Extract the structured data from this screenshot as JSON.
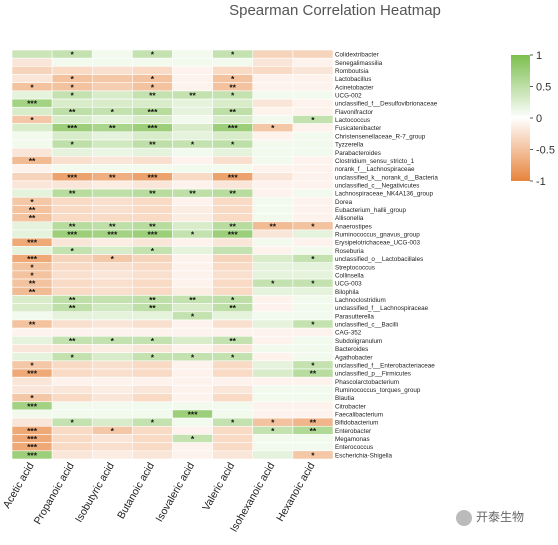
{
  "chart_data": {
    "type": "heatmap",
    "title": "Spearman Correlation Heatmap",
    "columns": [
      "Acetic acid",
      "Propanoic acid",
      "Isobutyric acid",
      "Butanoic acid",
      "Isovaleric acid",
      "Valeric acid",
      "Isohexanoic acid",
      "Hexanoic acid"
    ],
    "rows": [
      "Colidextribacter",
      "Senegalimassilia",
      "Romboutsia",
      "Lactobacillus",
      "Acinetobacter",
      "UCG-002",
      "unclassified_f__Desulfovibrionaceae",
      "Flavonifractor",
      "Lactococcus",
      "Fusicatenibacter",
      "Christensenellaceae_R-7_group",
      "Tyzzerella",
      "Parabacteroides",
      "Clostridium_sensu_stricto_1",
      "norank_f__Lachnospiraceae",
      "unclassified_k__norank_d__Bacteria",
      "unclassified_c__Negativicutes",
      "Lachnospiraceae_NK4A136_group",
      "Dorea",
      "Eubacterium_hallii_group",
      "Allisonella",
      "Anaerostipes",
      "Ruminococcus_gnavus_group",
      "Erysipelotrichaceae_UCG-003",
      "Roseburia",
      "unclassified_o__Lactobacillales",
      "Streptococcus",
      "Collinsella",
      "UCG-003",
      "Bilophila",
      "Lachnoclostridium",
      "unclassified_f__Lachnospiraceae",
      "Parasutterella",
      "unclassified_c__Bacilli",
      "CAG-352",
      "Subdoligranulum",
      "Bacteroides",
      "Agathobacter",
      "unclassified_f__Enterobacteriaceae",
      "unclassified_p__Firmicutes",
      "Phascolarctobacterium",
      "Ruminococcus_torques_group",
      "Blautia",
      "Citrobacter",
      "Faecalibacterium",
      "Bifidobacterium",
      "Enterobacter",
      "Megamonas",
      "Enterococcus",
      "Escherichia-Shigella"
    ],
    "values": [
      [
        0.4,
        0.45,
        0.1,
        0.45,
        0.1,
        0.45,
        -0.35,
        -0.35
      ],
      [
        -0.2,
        0.1,
        0.1,
        0.1,
        0.1,
        0.1,
        -0.2,
        -0.1
      ],
      [
        -0.35,
        -0.3,
        -0.25,
        -0.3,
        -0.1,
        -0.3,
        -0.3,
        -0.2
      ],
      [
        -0.2,
        -0.5,
        -0.45,
        -0.5,
        -0.1,
        -0.5,
        -0.1,
        -0.1
      ],
      [
        -0.5,
        -0.5,
        -0.4,
        -0.5,
        -0.1,
        -0.5,
        -0.1,
        -0.1
      ],
      [
        0.2,
        0.45,
        0.3,
        0.45,
        0.45,
        0.45,
        0.1,
        0.1
      ],
      [
        0.7,
        0.3,
        0.3,
        0.3,
        0.2,
        0.3,
        -0.2,
        -0.1
      ],
      [
        0.3,
        0.5,
        0.45,
        0.55,
        0.2,
        0.5,
        -0.1,
        -0.1
      ],
      [
        -0.45,
        0.3,
        0.2,
        0.3,
        0.1,
        0.3,
        0.1,
        0.45
      ],
      [
        0.3,
        0.75,
        0.65,
        0.75,
        0.3,
        0.75,
        -0.45,
        -0.1
      ],
      [
        0.1,
        0.3,
        0.2,
        0.3,
        0.2,
        0.3,
        -0.1,
        0.1
      ],
      [
        0.1,
        0.5,
        0.35,
        0.5,
        0.45,
        0.5,
        0.1,
        0.1
      ],
      [
        -0.2,
        0.2,
        0.15,
        0.2,
        0.1,
        0.2,
        0.1,
        0.1
      ],
      [
        -0.55,
        -0.25,
        -0.2,
        -0.25,
        -0.1,
        -0.25,
        0.1,
        -0.1
      ],
      [
        -0.1,
        0.1,
        0.1,
        0.1,
        0.1,
        0.1,
        -0.1,
        -0.1
      ],
      [
        -0.35,
        -0.75,
        -0.65,
        -0.75,
        -0.3,
        -0.75,
        -0.2,
        -0.1
      ],
      [
        -0.2,
        -0.2,
        -0.15,
        -0.2,
        -0.1,
        -0.2,
        -0.1,
        -0.1
      ],
      [
        0.2,
        0.55,
        0.5,
        0.55,
        0.5,
        0.55,
        -0.1,
        0.1
      ],
      [
        -0.45,
        -0.3,
        -0.25,
        -0.3,
        -0.1,
        -0.3,
        0.1,
        -0.1
      ],
      [
        -0.5,
        -0.3,
        -0.25,
        -0.3,
        -0.15,
        -0.3,
        0.1,
        -0.1
      ],
      [
        -0.5,
        -0.3,
        -0.3,
        -0.3,
        -0.15,
        -0.3,
        0.1,
        -0.1
      ],
      [
        0.2,
        0.55,
        0.5,
        0.55,
        0.3,
        0.55,
        -0.55,
        -0.5
      ],
      [
        0.2,
        0.75,
        0.7,
        0.75,
        0.45,
        0.75,
        -0.2,
        0.2
      ],
      [
        -0.7,
        -0.2,
        -0.15,
        -0.2,
        -0.1,
        -0.2,
        0.1,
        -0.1
      ],
      [
        0.2,
        0.45,
        0.3,
        0.45,
        0.2,
        0.45,
        -0.1,
        0.1
      ],
      [
        -0.7,
        -0.35,
        -0.45,
        -0.35,
        -0.1,
        -0.35,
        0.3,
        0.45
      ],
      [
        -0.5,
        -0.3,
        -0.25,
        -0.3,
        -0.1,
        -0.3,
        0.2,
        0.2
      ],
      [
        -0.5,
        -0.25,
        -0.2,
        -0.25,
        -0.1,
        -0.25,
        0.2,
        0.2
      ],
      [
        -0.5,
        -0.3,
        -0.25,
        -0.3,
        -0.1,
        -0.3,
        0.45,
        0.45
      ],
      [
        -0.55,
        -0.3,
        -0.25,
        -0.3,
        -0.15,
        -0.3,
        0.2,
        0.2
      ],
      [
        0.3,
        0.5,
        0.45,
        0.5,
        0.45,
        0.5,
        -0.1,
        0.1
      ],
      [
        0.3,
        0.5,
        0.35,
        0.5,
        0.3,
        0.5,
        -0.1,
        0.1
      ],
      [
        0.1,
        0.2,
        0.2,
        0.2,
        0.45,
        0.2,
        0.1,
        0.1
      ],
      [
        -0.5,
        -0.25,
        -0.2,
        -0.25,
        -0.1,
        -0.25,
        0.2,
        0.45
      ],
      [
        -0.1,
        -0.1,
        -0.1,
        -0.1,
        -0.1,
        -0.1,
        -0.1,
        -0.1
      ],
      [
        0.2,
        0.45,
        0.45,
        0.45,
        0.3,
        0.45,
        -0.1,
        0.1
      ],
      [
        -0.2,
        -0.2,
        -0.15,
        -0.2,
        -0.1,
        -0.2,
        0.1,
        0.1
      ],
      [
        0.2,
        0.45,
        0.3,
        0.45,
        0.45,
        0.45,
        -0.1,
        0.1
      ],
      [
        -0.45,
        -0.3,
        -0.25,
        -0.3,
        -0.1,
        -0.3,
        0.2,
        0.45
      ],
      [
        -0.7,
        -0.3,
        -0.25,
        -0.3,
        -0.1,
        -0.3,
        0.3,
        0.55
      ],
      [
        -0.2,
        -0.1,
        -0.1,
        -0.1,
        -0.1,
        -0.1,
        -0.1,
        -0.1
      ],
      [
        -0.2,
        -0.2,
        -0.15,
        -0.2,
        -0.1,
        -0.2,
        0.1,
        0.1
      ],
      [
        -0.45,
        -0.3,
        -0.2,
        -0.3,
        -0.1,
        -0.3,
        0.1,
        0.1
      ],
      [
        0.7,
        0.1,
        0.1,
        0.1,
        0.1,
        0.1,
        -0.1,
        -0.1
      ],
      [
        0.1,
        0.1,
        0.1,
        0.1,
        0.75,
        0.1,
        -0.1,
        -0.1
      ],
      [
        -0.2,
        0.45,
        0.3,
        0.45,
        0.1,
        0.45,
        -0.5,
        -0.6
      ],
      [
        -0.7,
        -0.3,
        -0.45,
        -0.3,
        -0.1,
        -0.3,
        0.45,
        0.6
      ],
      [
        -0.7,
        -0.3,
        -0.2,
        -0.3,
        0.45,
        -0.3,
        0.1,
        0.1
      ],
      [
        -0.7,
        -0.3,
        -0.25,
        -0.3,
        -0.1,
        -0.3,
        0.1,
        0.1
      ],
      [
        0.75,
        -0.2,
        -0.15,
        -0.2,
        -0.1,
        -0.2,
        0.2,
        -0.45
      ]
    ],
    "stars": [
      [
        "",
        "*",
        "",
        "*",
        "",
        "*",
        "",
        ""
      ],
      [
        "",
        "",
        "",
        "",
        "",
        "",
        "",
        ""
      ],
      [
        "",
        "",
        "",
        "",
        "",
        "",
        "",
        ""
      ],
      [
        "",
        "*",
        "",
        "*",
        "",
        "*",
        "",
        ""
      ],
      [
        "*",
        "*",
        "",
        "*",
        "",
        "**",
        "",
        ""
      ],
      [
        "",
        "*",
        "",
        "**",
        "**",
        "*",
        "",
        ""
      ],
      [
        "***",
        "",
        "",
        "",
        "",
        "",
        "",
        ""
      ],
      [
        "",
        "**",
        "*",
        "***",
        "",
        "**",
        "",
        ""
      ],
      [
        "*",
        "",
        "",
        "",
        "",
        "",
        "",
        "*"
      ],
      [
        "",
        "***",
        "**",
        "***",
        "",
        "***",
        "*",
        ""
      ],
      [
        "",
        "",
        "",
        "",
        "",
        "",
        "",
        ""
      ],
      [
        "",
        "*",
        "",
        "**",
        "*",
        "*",
        "",
        ""
      ],
      [
        "",
        "",
        "",
        "",
        "",
        "",
        "",
        ""
      ],
      [
        "**",
        "",
        "",
        "",
        "",
        "",
        "",
        ""
      ],
      [
        "",
        "",
        "",
        "",
        "",
        "",
        "",
        ""
      ],
      [
        "",
        "***",
        "**",
        "***",
        "",
        "***",
        "",
        ""
      ],
      [
        "",
        "",
        "",
        "",
        "",
        "",
        "",
        ""
      ],
      [
        "",
        "**",
        "",
        "**",
        "**",
        "**",
        "",
        ""
      ],
      [
        "*",
        "",
        "",
        "",
        "",
        "",
        "",
        ""
      ],
      [
        "**",
        "",
        "",
        "",
        "",
        "",
        "",
        ""
      ],
      [
        "**",
        "",
        "",
        "",
        "",
        "",
        "",
        ""
      ],
      [
        "",
        "**",
        "**",
        "**",
        "",
        "**",
        "**",
        "*"
      ],
      [
        "",
        "***",
        "***",
        "***",
        "*",
        "***",
        "",
        ""
      ],
      [
        "***",
        "",
        "",
        "",
        "",
        "",
        "",
        ""
      ],
      [
        "",
        "*",
        "",
        "*",
        "",
        "",
        "",
        ""
      ],
      [
        "***",
        "",
        "*",
        "",
        "",
        "",
        "",
        "*"
      ],
      [
        "*",
        "",
        "",
        "",
        "",
        "",
        "",
        ""
      ],
      [
        "*",
        "",
        "",
        "",
        "",
        "",
        "",
        ""
      ],
      [
        "**",
        "",
        "",
        "",
        "",
        "",
        "*",
        "*"
      ],
      [
        "**",
        "",
        "",
        "",
        "",
        "",
        "",
        ""
      ],
      [
        "",
        "**",
        "",
        "**",
        "**",
        "*",
        "",
        ""
      ],
      [
        "",
        "**",
        "",
        "**",
        "",
        "**",
        "",
        ""
      ],
      [
        "",
        "",
        "",
        "",
        "*",
        "",
        "",
        ""
      ],
      [
        "**",
        "",
        "",
        "",
        "",
        "",
        "",
        "*"
      ],
      [
        "",
        "",
        "",
        "",
        "",
        "",
        "",
        ""
      ],
      [
        "",
        "**",
        "*",
        "*",
        "",
        "**",
        "",
        ""
      ],
      [
        "",
        "",
        "",
        "",
        "",
        "",
        "",
        ""
      ],
      [
        "",
        "*",
        "",
        "*",
        "*",
        "*",
        "",
        ""
      ],
      [
        "*",
        "",
        "",
        "",
        "",
        "",
        "",
        "*"
      ],
      [
        "***",
        "",
        "",
        "",
        "",
        "",
        "",
        "**"
      ],
      [
        "",
        "",
        "",
        "",
        "",
        "",
        "",
        ""
      ],
      [
        "",
        "",
        "",
        "",
        "",
        "",
        "",
        ""
      ],
      [
        "*",
        "",
        "",
        "",
        "",
        "",
        "",
        ""
      ],
      [
        "***",
        "",
        "",
        "",
        "",
        "",
        "",
        ""
      ],
      [
        "",
        "",
        "",
        "",
        "***",
        "",
        "",
        ""
      ],
      [
        "",
        "*",
        "",
        "*",
        "",
        "*",
        "*",
        "**"
      ],
      [
        "***",
        "",
        "*",
        "",
        "",
        "",
        "*",
        "**"
      ],
      [
        "***",
        "",
        "",
        "",
        "*",
        "",
        "",
        ""
      ],
      [
        "***",
        "",
        "",
        "",
        "",
        "",
        "",
        ""
      ],
      [
        "***",
        "",
        "",
        "",
        "",
        "",
        "",
        "*"
      ]
    ],
    "colorbar_ticks": [
      "1",
      "0.5",
      "0",
      "-0.5",
      "-1"
    ],
    "colors": {
      "positive": "#7cbf4e",
      "neutral": "#ffffff",
      "negative": "#e6843c"
    }
  },
  "watermark": {
    "text": "开泰生物"
  }
}
